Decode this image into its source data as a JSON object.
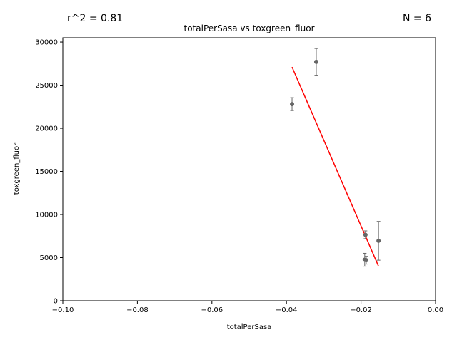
{
  "chart_data": {
    "type": "scatter",
    "title": "totalPerSasa vs toxgreen_fluor",
    "xlabel": "totalPerSasa",
    "ylabel": "toxgreen_fluor",
    "annotations": {
      "r_squared": "r^2 = 0.81",
      "n": "N = 6"
    },
    "xlim": [
      -0.1,
      0.0
    ],
    "ylim": [
      0,
      30500
    ],
    "x_ticks": [
      -0.1,
      -0.08,
      -0.06,
      -0.04,
      -0.02,
      0.0
    ],
    "x_tick_labels": [
      "−0.10",
      "−0.08",
      "−0.06",
      "−0.04",
      "−0.02",
      "0.00"
    ],
    "y_ticks": [
      0,
      5000,
      10000,
      15000,
      20000,
      25000,
      30000
    ],
    "y_tick_labels": [
      "0",
      "5000",
      "10000",
      "15000",
      "20000",
      "25000",
      "30000"
    ],
    "grid": false,
    "points": [
      {
        "x": -0.0385,
        "y": 22800,
        "err": 750
      },
      {
        "x": -0.032,
        "y": 27700,
        "err": 1550
      },
      {
        "x": -0.0188,
        "y": 7650,
        "err": 450
      },
      {
        "x": -0.019,
        "y": 4750,
        "err": 750
      },
      {
        "x": -0.0186,
        "y": 4700,
        "err": 450
      },
      {
        "x": -0.0153,
        "y": 6950,
        "err": 2250
      }
    ],
    "fit_line": {
      "x": [
        -0.0385,
        -0.0153
      ],
      "y": [
        27100,
        4000
      ]
    },
    "colors": {
      "points": "#666666",
      "error_bars": "#666666",
      "fit_line": "#ff0000"
    }
  }
}
